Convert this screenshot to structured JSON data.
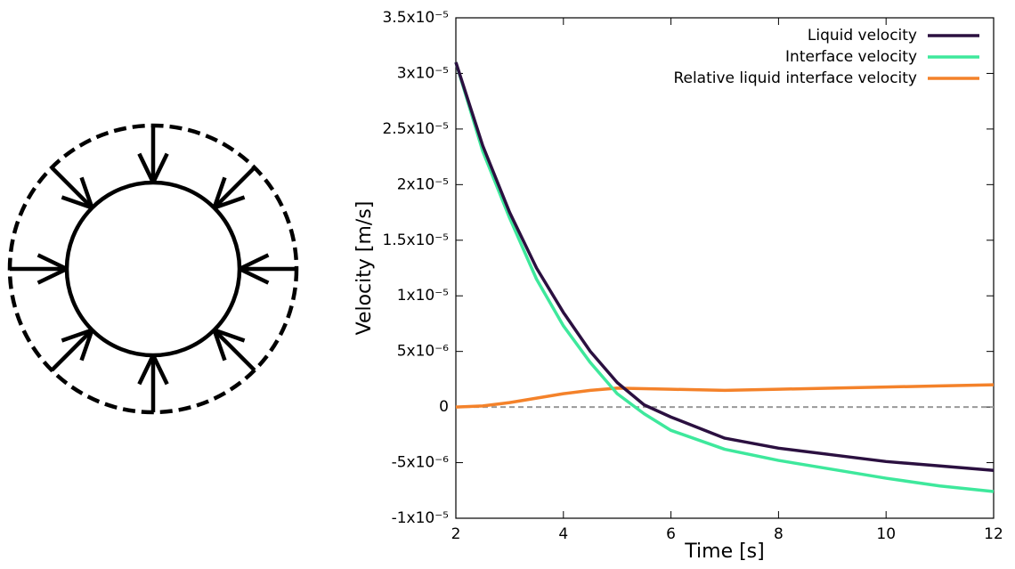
{
  "chart_data": {
    "type": "line",
    "xlabel": "Time [s]",
    "ylabel": "Velocity [m/s]",
    "x": [
      2,
      2.5,
      3,
      3.5,
      4,
      4.5,
      5,
      5.5,
      6,
      7,
      8,
      9,
      10,
      11,
      12
    ],
    "series": [
      {
        "name": "Liquid velocity",
        "color": "#2b1040",
        "values": [
          3.1e-05,
          2.35e-05,
          1.75e-05,
          1.25e-05,
          8.5e-06,
          5e-06,
          2.2e-06,
          2e-07,
          -9e-07,
          -2.8e-06,
          -3.7e-06,
          -4.3e-06,
          -4.9e-06,
          -5.3e-06,
          -5.7e-06
        ]
      },
      {
        "name": "Interface velocity",
        "color": "#3ee89c",
        "values": [
          3.1e-05,
          2.3e-05,
          1.7e-05,
          1.15e-05,
          7.3e-06,
          4e-06,
          1.2e-06,
          -6e-07,
          -2.1e-06,
          -3.8e-06,
          -4.8e-06,
          -5.6e-06,
          -6.4e-06,
          -7.1e-06,
          -7.6e-06
        ]
      },
      {
        "name": "Relative liquid interface velocity",
        "color": "#f4822a",
        "values": [
          0,
          1e-07,
          4e-07,
          8e-07,
          1.2e-06,
          1.5e-06,
          1.7e-06,
          1.65e-06,
          1.6e-06,
          1.5e-06,
          1.6e-06,
          1.7e-06,
          1.8e-06,
          1.9e-06,
          2e-06
        ]
      }
    ],
    "xlim": [
      2,
      12
    ],
    "xticks": [
      2,
      4,
      6,
      8,
      10,
      12
    ],
    "ylim": [
      -1e-05,
      3.5e-05
    ],
    "yticks": [
      {
        "value": -1e-05,
        "label": "-1x10⁻⁵"
      },
      {
        "value": -5e-06,
        "label": "-5x10⁻⁶"
      },
      0,
      {
        "value": 5e-06,
        "label": "5x10⁻⁶"
      },
      {
        "value": 1e-05,
        "label": "1x10⁻⁵"
      },
      {
        "value": 1.5e-05,
        "label": "1.5x10⁻⁵"
      },
      {
        "value": 2e-05,
        "label": "2x10⁻⁵"
      },
      {
        "value": 2.5e-05,
        "label": "2.5x10⁻⁵"
      },
      {
        "value": 3e-05,
        "label": "3x10⁻⁵"
      },
      {
        "value": 3.5e-05,
        "label": "3.5x10⁻⁵"
      }
    ],
    "legend": "upper right"
  }
}
